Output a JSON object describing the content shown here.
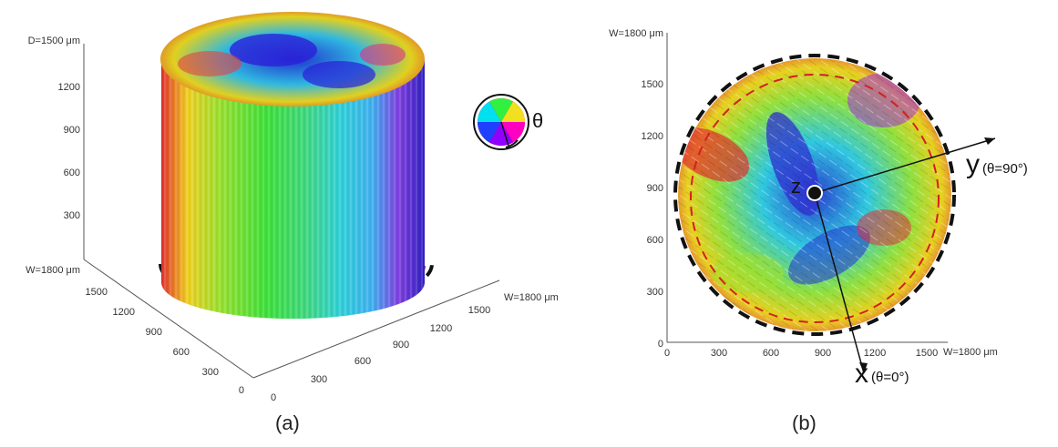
{
  "panel_a": {
    "caption": "(a)",
    "axis_z_label": "D=1500 μm",
    "z_ticks": [
      "1200",
      "900",
      "600",
      "300"
    ],
    "axis_left_label": "W=1800 μm",
    "left_ticks": [
      "1500",
      "1200",
      "900",
      "600",
      "300",
      "0"
    ],
    "axis_right_label": "W=1800 μm",
    "right_ticks": [
      "0",
      "300",
      "600",
      "900",
      "1200",
      "1500"
    ],
    "color_wheel_symbol": "θ"
  },
  "panel_b": {
    "caption": "(b)",
    "y_axis_title": "W=1800 μm",
    "y_ticks": [
      "1500",
      "1200",
      "900",
      "600",
      "300",
      "0"
    ],
    "x_ticks": [
      "0",
      "300",
      "600",
      "900",
      "1200",
      "1500"
    ],
    "x_axis_title": "W=1800 μm",
    "center_label": "z",
    "x_arrow_label": "x",
    "x_arrow_sub": "(θ=0°)",
    "y_arrow_label": "y",
    "y_arrow_sub": "(θ=90°)"
  }
}
